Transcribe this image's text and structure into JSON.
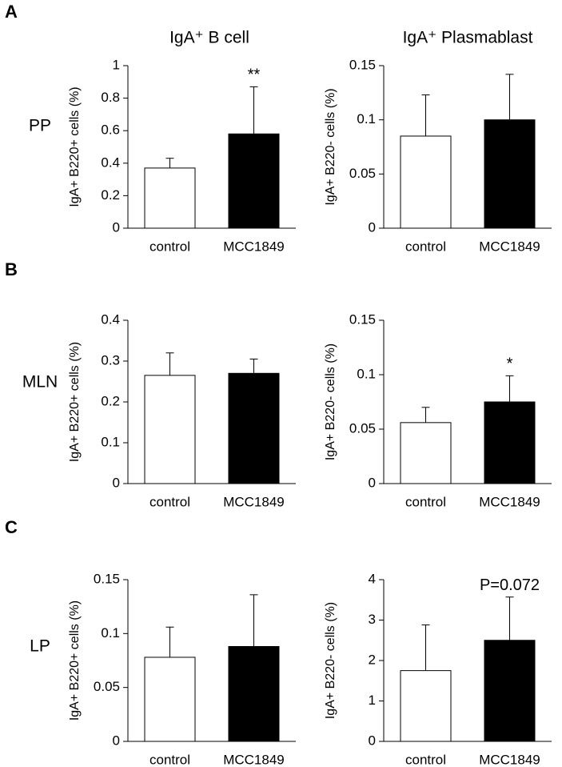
{
  "panel_labels": [
    "A",
    "B",
    "C"
  ],
  "column_titles": [
    "IgA⁺ B cell",
    "IgA⁺ Plasmablast"
  ],
  "row_labels": [
    "PP",
    "MLN",
    "LP"
  ],
  "chart_data": [
    {
      "type": "bar",
      "ylabel": "IgA+ B220+ cells (%)",
      "categories": [
        "control",
        "MCC1849"
      ],
      "values": [
        0.37,
        0.58
      ],
      "errors": [
        0.06,
        0.29
      ],
      "annotations": [
        null,
        "**"
      ],
      "colors": [
        "#ffffff",
        "#000000"
      ],
      "ylim": [
        0,
        1
      ],
      "yticks": [
        0,
        0.2,
        0.4,
        0.6,
        0.8,
        1
      ]
    },
    {
      "type": "bar",
      "ylabel": "IgA+ B220- cells (%)",
      "categories": [
        "control",
        "MCC1849"
      ],
      "values": [
        0.085,
        0.1
      ],
      "errors": [
        0.038,
        0.042
      ],
      "annotations": [
        null,
        null
      ],
      "colors": [
        "#ffffff",
        "#000000"
      ],
      "ylim": [
        0,
        0.15
      ],
      "yticks": [
        0,
        0.05,
        0.1,
        0.15
      ]
    },
    {
      "type": "bar",
      "ylabel": "IgA+ B220+ cells (%)",
      "categories": [
        "control",
        "MCC1849"
      ],
      "values": [
        0.265,
        0.27
      ],
      "errors": [
        0.055,
        0.035
      ],
      "annotations": [
        null,
        null
      ],
      "colors": [
        "#ffffff",
        "#000000"
      ],
      "ylim": [
        0,
        0.4
      ],
      "yticks": [
        0,
        0.1,
        0.2,
        0.3,
        0.4
      ]
    },
    {
      "type": "bar",
      "ylabel": "IgA+ B220- cells (%)",
      "categories": [
        "control",
        "MCC1849"
      ],
      "values": [
        0.056,
        0.075
      ],
      "errors": [
        0.014,
        0.024
      ],
      "annotations": [
        null,
        "*"
      ],
      "colors": [
        "#ffffff",
        "#000000"
      ],
      "ylim": [
        0,
        0.15
      ],
      "yticks": [
        0,
        0.05,
        0.1,
        0.15
      ]
    },
    {
      "type": "bar",
      "ylabel": "IgA+ B220+ cells (%)",
      "categories": [
        "control",
        "MCC1849"
      ],
      "values": [
        0.078,
        0.088
      ],
      "errors": [
        0.028,
        0.048
      ],
      "annotations": [
        null,
        null
      ],
      "colors": [
        "#ffffff",
        "#000000"
      ],
      "ylim": [
        0,
        0.15
      ],
      "yticks": [
        0,
        0.05,
        0.1,
        0.15
      ]
    },
    {
      "type": "bar",
      "ylabel": "IgA+ B220- cells (%)",
      "categories": [
        "control",
        "MCC1849"
      ],
      "values": [
        1.75,
        2.5
      ],
      "errors": [
        1.13,
        1.07
      ],
      "annotations": [
        null,
        "P=0.072"
      ],
      "colors": [
        "#ffffff",
        "#000000"
      ],
      "ylim": [
        0,
        4
      ],
      "yticks": [
        0,
        1,
        2,
        3,
        4
      ]
    }
  ]
}
